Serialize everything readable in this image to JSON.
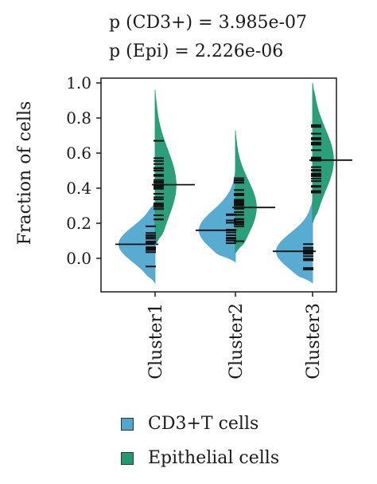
{
  "annotations": [
    "p (CD3+) = 3.985e-07",
    "p (Epi) = 2.226e-06"
  ],
  "legend": [
    {
      "label": "CD3+T cells",
      "color": "#4fa7cf"
    },
    {
      "label": "Epithelial cells",
      "color": "#1f9a72"
    }
  ],
  "chart_data": {
    "type": "violin",
    "ylabel": "Fraction of cells",
    "ylim": [
      -0.15,
      1.0
    ],
    "yticks": [
      "0.0",
      "0.2",
      "0.4",
      "0.6",
      "0.8",
      "1.0"
    ],
    "categories": [
      "Cluster1",
      "Cluster2",
      "Cluster3"
    ],
    "series": [
      {
        "name": "CD3+T cells",
        "color": "#4fa7cf",
        "medians": [
          0.08,
          0.16,
          0.04
        ],
        "ranges": [
          [
            -0.14,
            0.32
          ],
          [
            -0.02,
            0.5
          ],
          [
            -0.14,
            0.33
          ]
        ]
      },
      {
        "name": "Epithelial cells",
        "color": "#1f9a72",
        "medians": [
          0.42,
          0.29,
          0.56
        ],
        "ranges": [
          [
            0.07,
            0.96
          ],
          [
            0.03,
            0.73
          ],
          [
            0.2,
            1.0
          ]
        ]
      }
    ],
    "grid": false,
    "legend_position": "bottom"
  }
}
